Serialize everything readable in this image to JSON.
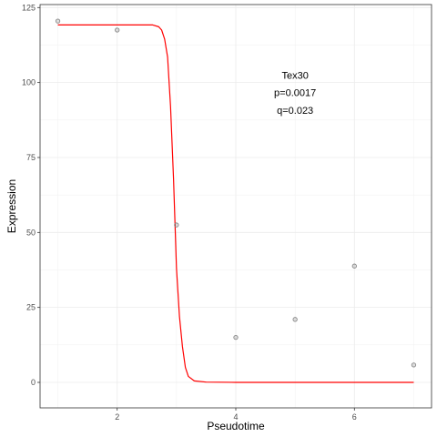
{
  "chart_data": {
    "type": "scatter",
    "xlabel": "Pseudotime",
    "ylabel": "Expression",
    "xlim": [
      0.7,
      7.3
    ],
    "ylim": [
      -8.5,
      126
    ],
    "x_ticks": [
      2,
      4,
      6
    ],
    "y_ticks": [
      0,
      25,
      50,
      75,
      100,
      125
    ],
    "grid": true,
    "series": [
      {
        "kind": "points",
        "color": "#888888",
        "points": [
          {
            "x": 1,
            "y": 120.5
          },
          {
            "x": 2,
            "y": 117.5
          },
          {
            "x": 3,
            "y": 52.5
          },
          {
            "x": 4,
            "y": 15
          },
          {
            "x": 5,
            "y": 21
          },
          {
            "x": 6,
            "y": 38.8
          },
          {
            "x": 7,
            "y": 5.8
          }
        ]
      },
      {
        "kind": "fit-line",
        "color": "#ff0000",
        "points": [
          {
            "x": 1.0,
            "y": 119.2
          },
          {
            "x": 2.6,
            "y": 119.2
          },
          {
            "x": 2.7,
            "y": 118.6
          },
          {
            "x": 2.75,
            "y": 117.5
          },
          {
            "x": 2.8,
            "y": 114.5
          },
          {
            "x": 2.85,
            "y": 108.5
          },
          {
            "x": 2.9,
            "y": 92
          },
          {
            "x": 2.95,
            "y": 68
          },
          {
            "x": 3.0,
            "y": 38
          },
          {
            "x": 3.05,
            "y": 22
          },
          {
            "x": 3.1,
            "y": 12
          },
          {
            "x": 3.15,
            "y": 5
          },
          {
            "x": 3.2,
            "y": 2
          },
          {
            "x": 3.3,
            "y": 0.5
          },
          {
            "x": 3.5,
            "y": 0.1
          },
          {
            "x": 4.0,
            "y": 0
          },
          {
            "x": 7.0,
            "y": 0
          }
        ]
      }
    ],
    "annotations": {
      "x": 5.0,
      "y": [
        102.5,
        96.7,
        90.8
      ],
      "lines": [
        "Tex30",
        "p=0.0017",
        "q=0.023"
      ]
    }
  }
}
